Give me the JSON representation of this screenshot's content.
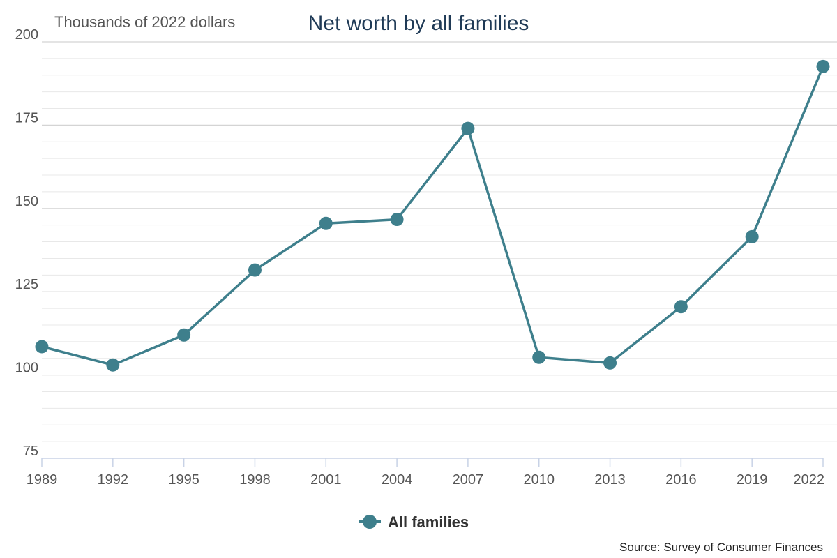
{
  "chart_data": {
    "type": "line",
    "title": "Net worth by all families",
    "unit_label": "Thousands of 2022 dollars",
    "xlabel": "",
    "ylabel": "",
    "categories": [
      "1989",
      "1992",
      "1995",
      "1998",
      "2001",
      "2004",
      "2007",
      "2010",
      "2013",
      "2016",
      "2019",
      "2022"
    ],
    "series": [
      {
        "name": "All families",
        "color": "#3e7f8c",
        "values": [
          108.5,
          103,
          112,
          131.5,
          145.5,
          146.7,
          174,
          105.3,
          103.6,
          120.5,
          141.5,
          192.6
        ]
      }
    ],
    "ylim": [
      75,
      200
    ],
    "y_ticks": [
      "75",
      "100",
      "125",
      "150",
      "175",
      "200"
    ],
    "grid": true,
    "legend_position": "bottom-center",
    "source": "Source: Survey of Consumer Finances"
  }
}
